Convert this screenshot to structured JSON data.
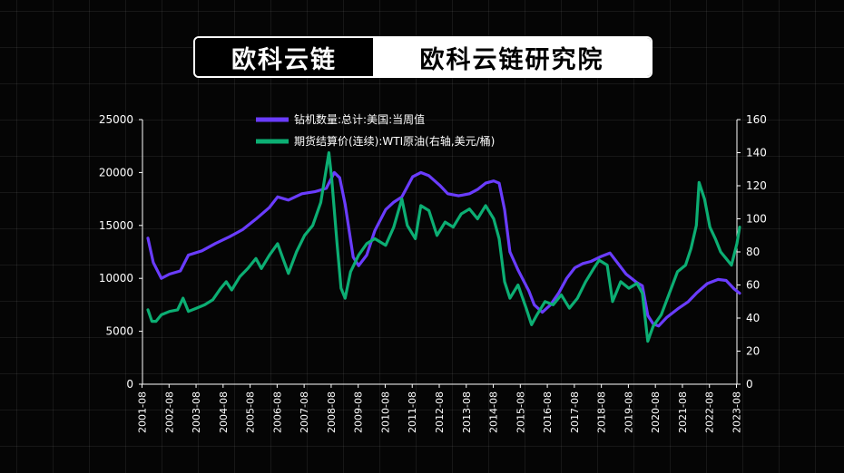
{
  "banner": {
    "brand": "欧科云链",
    "institute": "欧科云链研究院"
  },
  "colors": {
    "background": "#050505",
    "rig_series": "#6a3cff",
    "oil_series": "#0cae73",
    "axis": "#ffffff"
  },
  "chart_data": {
    "type": "line",
    "title": "",
    "legend_placement": "top-center",
    "grid": false,
    "x_ticks": [
      "2001-08",
      "2002-08",
      "2003-08",
      "2004-08",
      "2005-08",
      "2006-08",
      "2007-08",
      "2008-08",
      "2009-08",
      "2010-08",
      "2011-08",
      "2012-08",
      "2013-08",
      "2014-08",
      "2015-08",
      "2016-08",
      "2017-08",
      "2018-08",
      "2019-08",
      "2020-08",
      "2021-08",
      "2022-08",
      "2023-08"
    ],
    "xlim": [
      2001.6,
      2023.6
    ],
    "left_axis": {
      "ylim": [
        0,
        25000
      ],
      "ticks": [
        "0",
        "5000",
        "10000",
        "15000",
        "20000",
        "25000"
      ]
    },
    "right_axis": {
      "ylim": [
        0,
        160
      ],
      "ticks": [
        "0",
        "20",
        "40",
        "60",
        "80",
        "100",
        "120",
        "140",
        "160"
      ]
    },
    "series": [
      {
        "name": "钻机数量:总计:美国:当周值",
        "axis": "left",
        "points": [
          [
            2001.8,
            13800
          ],
          [
            2002.0,
            11500
          ],
          [
            2002.3,
            10000
          ],
          [
            2002.6,
            10400
          ],
          [
            2003.0,
            10700
          ],
          [
            2003.3,
            12200
          ],
          [
            2003.8,
            12600
          ],
          [
            2004.3,
            13300
          ],
          [
            2004.8,
            13900
          ],
          [
            2005.3,
            14600
          ],
          [
            2005.8,
            15600
          ],
          [
            2006.3,
            16700
          ],
          [
            2006.6,
            17700
          ],
          [
            2007.0,
            17400
          ],
          [
            2007.5,
            18000
          ],
          [
            2008.0,
            18200
          ],
          [
            2008.4,
            18500
          ],
          [
            2008.7,
            20000
          ],
          [
            2008.9,
            19500
          ],
          [
            2009.1,
            17000
          ],
          [
            2009.4,
            12000
          ],
          [
            2009.6,
            11200
          ],
          [
            2009.9,
            12200
          ],
          [
            2010.2,
            14500
          ],
          [
            2010.6,
            16500
          ],
          [
            2010.9,
            17200
          ],
          [
            2011.2,
            17700
          ],
          [
            2011.6,
            19600
          ],
          [
            2011.9,
            20000
          ],
          [
            2012.2,
            19700
          ],
          [
            2012.6,
            18800
          ],
          [
            2012.9,
            18000
          ],
          [
            2013.3,
            17800
          ],
          [
            2013.7,
            18000
          ],
          [
            2014.0,
            18400
          ],
          [
            2014.3,
            19000
          ],
          [
            2014.6,
            19200
          ],
          [
            2014.8,
            19000
          ],
          [
            2015.0,
            16500
          ],
          [
            2015.2,
            12500
          ],
          [
            2015.5,
            10800
          ],
          [
            2015.9,
            8800
          ],
          [
            2016.1,
            7500
          ],
          [
            2016.4,
            6800
          ],
          [
            2016.7,
            7500
          ],
          [
            2017.0,
            8600
          ],
          [
            2017.3,
            10000
          ],
          [
            2017.6,
            11000
          ],
          [
            2017.9,
            11400
          ],
          [
            2018.2,
            11600
          ],
          [
            2018.6,
            12100
          ],
          [
            2018.9,
            12400
          ],
          [
            2019.2,
            11400
          ],
          [
            2019.5,
            10400
          ],
          [
            2019.9,
            9600
          ],
          [
            2020.1,
            9300
          ],
          [
            2020.3,
            6500
          ],
          [
            2020.5,
            5700
          ],
          [
            2020.7,
            5500
          ],
          [
            2021.0,
            6300
          ],
          [
            2021.4,
            7100
          ],
          [
            2021.8,
            7800
          ],
          [
            2022.1,
            8600
          ],
          [
            2022.5,
            9500
          ],
          [
            2022.9,
            9900
          ],
          [
            2023.2,
            9800
          ],
          [
            2023.5,
            9000
          ],
          [
            2023.7,
            8600
          ]
        ]
      },
      {
        "name": "期货结算价(连续):WTI原油(右轴,美元/桶)",
        "axis": "right",
        "points": [
          [
            2001.8,
            45
          ],
          [
            2001.95,
            38
          ],
          [
            2002.1,
            38
          ],
          [
            2002.3,
            42
          ],
          [
            2002.6,
            44
          ],
          [
            2002.9,
            45
          ],
          [
            2003.1,
            52
          ],
          [
            2003.3,
            44
          ],
          [
            2003.6,
            46
          ],
          [
            2003.9,
            48
          ],
          [
            2004.2,
            51
          ],
          [
            2004.5,
            58
          ],
          [
            2004.7,
            62
          ],
          [
            2004.9,
            57
          ],
          [
            2005.2,
            65
          ],
          [
            2005.5,
            70
          ],
          [
            2005.8,
            76
          ],
          [
            2006.0,
            70
          ],
          [
            2006.3,
            78
          ],
          [
            2006.6,
            85
          ],
          [
            2006.8,
            76
          ],
          [
            2007.0,
            67
          ],
          [
            2007.3,
            80
          ],
          [
            2007.6,
            90
          ],
          [
            2007.9,
            96
          ],
          [
            2008.2,
            110
          ],
          [
            2008.5,
            140
          ],
          [
            2008.6,
            125
          ],
          [
            2008.8,
            85
          ],
          [
            2008.95,
            58
          ],
          [
            2009.1,
            52
          ],
          [
            2009.3,
            68
          ],
          [
            2009.6,
            78
          ],
          [
            2009.9,
            85
          ],
          [
            2010.2,
            88
          ],
          [
            2010.6,
            84
          ],
          [
            2010.9,
            95
          ],
          [
            2011.2,
            112
          ],
          [
            2011.4,
            96
          ],
          [
            2011.7,
            88
          ],
          [
            2011.9,
            108
          ],
          [
            2012.2,
            105
          ],
          [
            2012.5,
            90
          ],
          [
            2012.8,
            98
          ],
          [
            2013.1,
            95
          ],
          [
            2013.4,
            103
          ],
          [
            2013.7,
            106
          ],
          [
            2014.0,
            100
          ],
          [
            2014.3,
            108
          ],
          [
            2014.6,
            100
          ],
          [
            2014.8,
            88
          ],
          [
            2015.0,
            62
          ],
          [
            2015.2,
            52
          ],
          [
            2015.5,
            60
          ],
          [
            2015.8,
            46
          ],
          [
            2016.0,
            36
          ],
          [
            2016.2,
            42
          ],
          [
            2016.5,
            50
          ],
          [
            2016.8,
            48
          ],
          [
            2017.1,
            54
          ],
          [
            2017.4,
            46
          ],
          [
            2017.7,
            52
          ],
          [
            2018.0,
            62
          ],
          [
            2018.3,
            70
          ],
          [
            2018.5,
            75
          ],
          [
            2018.8,
            72
          ],
          [
            2019.0,
            50
          ],
          [
            2019.3,
            62
          ],
          [
            2019.6,
            58
          ],
          [
            2019.9,
            61
          ],
          [
            2020.1,
            55
          ],
          [
            2020.3,
            26
          ],
          [
            2020.5,
            35
          ],
          [
            2020.8,
            42
          ],
          [
            2021.1,
            55
          ],
          [
            2021.4,
            68
          ],
          [
            2021.7,
            72
          ],
          [
            2021.9,
            82
          ],
          [
            2022.1,
            96
          ],
          [
            2022.2,
            122
          ],
          [
            2022.4,
            112
          ],
          [
            2022.6,
            95
          ],
          [
            2022.8,
            88
          ],
          [
            2023.0,
            80
          ],
          [
            2023.2,
            76
          ],
          [
            2023.4,
            72
          ],
          [
            2023.6,
            85
          ],
          [
            2023.7,
            95
          ]
        ]
      }
    ]
  }
}
